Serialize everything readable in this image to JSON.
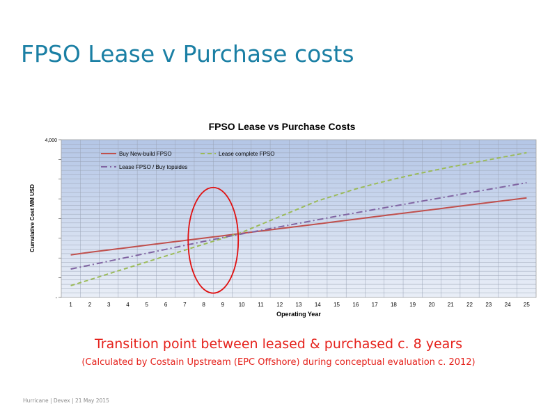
{
  "slide": {
    "title": "FPSO Lease v Purchase costs",
    "caption_main": "Transition point between leased & purchased c. 8 years",
    "caption_sub": "(Calculated by Costain Upstream (EPC Offshore) during conceptual evaluation c. 2012)",
    "footer": "Hurricane  |  Devex |  21 May 2015"
  },
  "chart_data": {
    "type": "line",
    "title": "FPSO Lease vs Purchase Costs",
    "xlabel": "Operating Year",
    "ylabel": "Cumulative Cost MM USD",
    "ylim": [
      0,
      4000
    ],
    "y_tick_labels": [
      {
        "value": 4000,
        "label": "4,000"
      },
      {
        "value": 0,
        "label": "-"
      }
    ],
    "x": [
      1,
      2,
      3,
      4,
      5,
      6,
      7,
      8,
      9,
      10,
      11,
      12,
      13,
      14,
      15,
      16,
      17,
      18,
      19,
      20,
      21,
      22,
      23,
      24,
      25
    ],
    "grid": true,
    "legend": "top-left",
    "highlight": {
      "type": "ellipse",
      "x_center": 8.5,
      "y_center": 1450,
      "color": "#e01010"
    },
    "series": [
      {
        "name": "Buy New-build FPSO",
        "color": "#c0504d",
        "dash": "solid",
        "values": [
          1080,
          1145,
          1205,
          1265,
          1325,
          1385,
          1445,
          1505,
          1565,
          1625,
          1685,
          1745,
          1805,
          1865,
          1925,
          1985,
          2045,
          2105,
          2165,
          2225,
          2285,
          2345,
          2405,
          2465,
          2525
        ]
      },
      {
        "name": "Lease complete FPSO",
        "color": "#9bbb59",
        "dash": "dash",
        "values": [
          300,
          450,
          600,
          750,
          900,
          1050,
          1200,
          1350,
          1500,
          1650,
          1850,
          2050,
          2250,
          2450,
          2600,
          2750,
          2880,
          3000,
          3110,
          3210,
          3310,
          3400,
          3490,
          3580,
          3670
        ]
      },
      {
        "name": "Lease FPSO / Buy topsides",
        "color": "#8064a2",
        "dash": "dashdot",
        "values": [
          720,
          820,
          920,
          1020,
          1120,
          1220,
          1320,
          1420,
          1520,
          1610,
          1700,
          1790,
          1880,
          1970,
          2060,
          2145,
          2230,
          2315,
          2400,
          2485,
          2570,
          2655,
          2740,
          2825,
          2910
        ]
      }
    ]
  }
}
